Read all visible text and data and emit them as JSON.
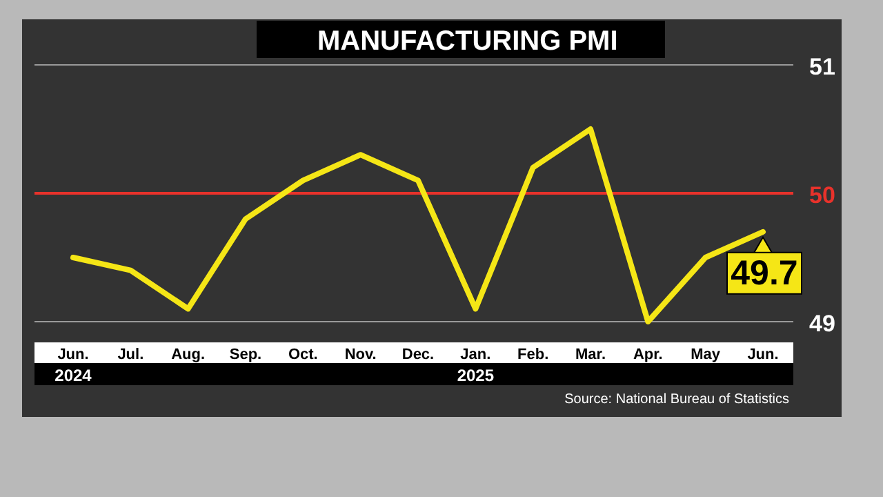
{
  "chart_data": {
    "type": "line",
    "title": "MANUFACTURING PMI",
    "categories": [
      "Jun.\n2024",
      "Jul.",
      "Aug.",
      "Sep.",
      "Oct.",
      "Nov.",
      "Dec.",
      "Jan.\n2025",
      "Feb.",
      "Mar.",
      "Apr.",
      "May",
      "Jun."
    ],
    "series": [
      {
        "color": "#f5e616",
        "values": [
          49.5,
          49.4,
          49.1,
          49.8,
          50.1,
          50.3,
          50.1,
          49.1,
          50.2,
          50.5,
          49.0,
          49.5,
          49.7
        ],
        "value_labels": [
          null,
          null,
          null,
          null,
          null,
          null,
          null,
          null,
          null,
          null,
          null,
          null,
          "49.7"
        ]
      }
    ],
    "ylim": [
      49,
      51
    ],
    "yticks": [
      49,
      51
    ],
    "ref_lines": [
      {
        "axis": "y",
        "value": 50,
        "label": "50",
        "color": "#e8322b"
      }
    ],
    "annotations": [
      "Source: National Bureau of Statistics"
    ]
  }
}
